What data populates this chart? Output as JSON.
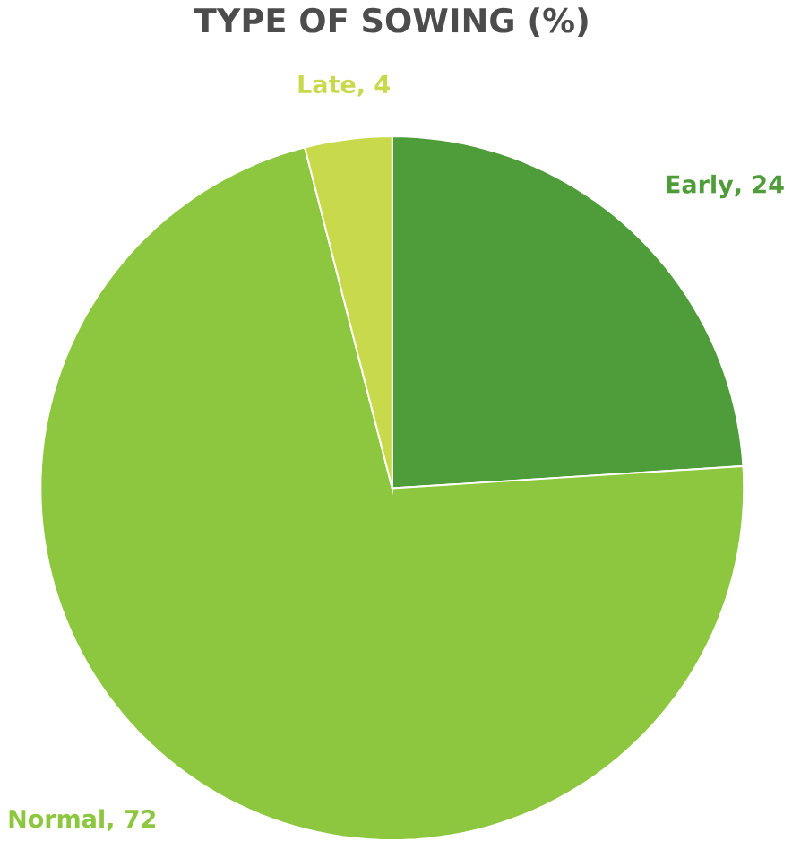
{
  "chart_data": {
    "type": "pie",
    "title": "TYPE OF SOWING (%)",
    "categories": [
      "Early",
      "Normal",
      "Late"
    ],
    "values": [
      24,
      72,
      4
    ],
    "colors": [
      "#4f9d3a",
      "#8dc63f",
      "#c9d94c"
    ],
    "value_labels": [
      ", 24",
      ", 72",
      ", 4"
    ]
  }
}
